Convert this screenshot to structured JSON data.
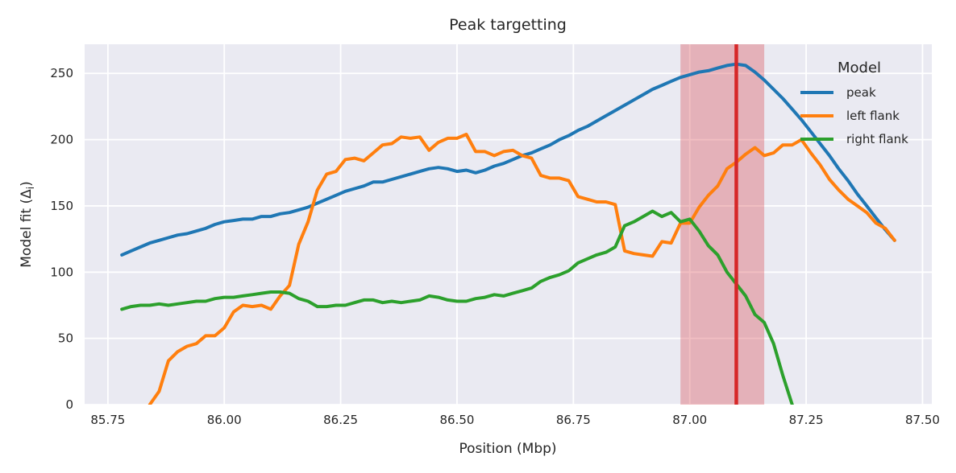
{
  "chart_data": {
    "type": "line",
    "title": "Peak targetting",
    "xlabel": "Position (Mbp)",
    "ylabel_main": "Model fit (Δ",
    "ylabel_sub": "i",
    "ylabel_close": ")",
    "xlim": [
      85.7,
      87.52
    ],
    "ylim": [
      0,
      272
    ],
    "xticks": [
      85.75,
      86.0,
      86.25,
      86.5,
      86.75,
      87.0,
      87.25,
      87.5
    ],
    "xtick_labels": [
      "85.75",
      "86.00",
      "86.25",
      "86.50",
      "86.75",
      "87.00",
      "87.25",
      "87.50"
    ],
    "yticks": [
      0,
      50,
      100,
      150,
      200,
      250
    ],
    "ytick_labels": [
      "0",
      "50",
      "100",
      "150",
      "200",
      "250"
    ],
    "grid": true,
    "legend_title": "Model",
    "legend_position": "top-right",
    "highlight_band": {
      "x0": 86.98,
      "x1": 87.16,
      "color": "#d9474f"
    },
    "highlight_line": {
      "x": 87.1,
      "color": "#d62728"
    },
    "series": [
      {
        "name": "peak",
        "color": "#1f77b4",
        "x": [
          85.78,
          85.8,
          85.82,
          85.84,
          85.86,
          85.88,
          85.9,
          85.92,
          85.94,
          85.96,
          85.98,
          86.0,
          86.02,
          86.04,
          86.06,
          86.08,
          86.1,
          86.12,
          86.14,
          86.16,
          86.18,
          86.2,
          86.22,
          86.24,
          86.26,
          86.28,
          86.3,
          86.32,
          86.34,
          86.36,
          86.38,
          86.4,
          86.42,
          86.44,
          86.46,
          86.48,
          86.5,
          86.52,
          86.54,
          86.56,
          86.58,
          86.6,
          86.62,
          86.64,
          86.66,
          86.68,
          86.7,
          86.72,
          86.74,
          86.76,
          86.78,
          86.8,
          86.82,
          86.84,
          86.86,
          86.88,
          86.9,
          86.92,
          86.94,
          86.96,
          86.98,
          87.0,
          87.02,
          87.04,
          87.06,
          87.08,
          87.1,
          87.12,
          87.14,
          87.16,
          87.18,
          87.2,
          87.22,
          87.24,
          87.26,
          87.28,
          87.3,
          87.32,
          87.34,
          87.36,
          87.38,
          87.4,
          87.42,
          87.44
        ],
        "values": [
          113,
          116,
          119,
          122,
          124,
          126,
          128,
          129,
          131,
          133,
          136,
          138,
          139,
          140,
          140,
          142,
          142,
          144,
          145,
          147,
          149,
          152,
          155,
          158,
          161,
          163,
          165,
          168,
          168,
          170,
          172,
          174,
          176,
          178,
          179,
          178,
          176,
          177,
          175,
          177,
          180,
          182,
          185,
          188,
          190,
          193,
          196,
          200,
          203,
          207,
          210,
          214,
          218,
          222,
          226,
          230,
          234,
          238,
          241,
          244,
          247,
          249,
          251,
          252,
          254,
          256,
          257,
          256,
          251,
          245,
          238,
          231,
          223,
          215,
          206,
          197,
          188,
          178,
          169,
          159,
          150,
          141,
          132,
          124
        ]
      },
      {
        "name": "left flank",
        "color": "#ff7f0e",
        "x": [
          85.84,
          85.86,
          85.88,
          85.9,
          85.92,
          85.94,
          85.96,
          85.98,
          86.0,
          86.02,
          86.04,
          86.06,
          86.08,
          86.1,
          86.12,
          86.14,
          86.16,
          86.18,
          86.2,
          86.22,
          86.24,
          86.26,
          86.28,
          86.3,
          86.32,
          86.34,
          86.36,
          86.38,
          86.4,
          86.42,
          86.44,
          86.46,
          86.48,
          86.5,
          86.52,
          86.54,
          86.56,
          86.58,
          86.6,
          86.62,
          86.64,
          86.66,
          86.68,
          86.7,
          86.72,
          86.74,
          86.76,
          86.78,
          86.8,
          86.82,
          86.84,
          86.86,
          86.88,
          86.9,
          86.92,
          86.94,
          86.96,
          86.98,
          87.0,
          87.02,
          87.04,
          87.06,
          87.08,
          87.1,
          87.12,
          87.14,
          87.16,
          87.18,
          87.2,
          87.22,
          87.24,
          87.26,
          87.28,
          87.3,
          87.32,
          87.34,
          87.36,
          87.38,
          87.4,
          87.42,
          87.44
        ],
        "values": [
          0,
          10,
          33,
          40,
          44,
          46,
          52,
          52,
          58,
          70,
          75,
          74,
          75,
          72,
          82,
          90,
          121,
          138,
          162,
          174,
          176,
          185,
          186,
          184,
          190,
          196,
          197,
          202,
          201,
          202,
          192,
          198,
          201,
          201,
          204,
          191,
          191,
          188,
          191,
          192,
          188,
          186,
          173,
          171,
          171,
          169,
          157,
          155,
          153,
          153,
          151,
          116,
          114,
          113,
          112,
          123,
          122,
          137,
          137,
          149,
          158,
          165,
          178,
          183,
          189,
          194,
          188,
          190,
          196,
          196,
          200,
          190,
          181,
          170,
          162,
          155,
          150,
          145,
          137,
          133,
          124
        ]
      },
      {
        "name": "right flank",
        "color": "#2ca02c",
        "x": [
          85.78,
          85.8,
          85.82,
          85.84,
          85.86,
          85.88,
          85.9,
          85.92,
          85.94,
          85.96,
          85.98,
          86.0,
          86.02,
          86.04,
          86.06,
          86.08,
          86.1,
          86.12,
          86.14,
          86.16,
          86.18,
          86.2,
          86.22,
          86.24,
          86.26,
          86.28,
          86.3,
          86.32,
          86.34,
          86.36,
          86.38,
          86.4,
          86.42,
          86.44,
          86.46,
          86.48,
          86.5,
          86.52,
          86.54,
          86.56,
          86.58,
          86.6,
          86.62,
          86.64,
          86.66,
          86.68,
          86.7,
          86.72,
          86.74,
          86.76,
          86.78,
          86.8,
          86.82,
          86.84,
          86.86,
          86.88,
          86.9,
          86.92,
          86.94,
          86.96,
          86.98,
          87.0,
          87.02,
          87.04,
          87.06,
          87.08,
          87.1,
          87.12,
          87.14,
          87.16,
          87.18,
          87.2,
          87.22
        ],
        "values": [
          72,
          74,
          75,
          75,
          76,
          75,
          76,
          77,
          78,
          78,
          80,
          81,
          81,
          82,
          83,
          84,
          85,
          85,
          84,
          80,
          78,
          74,
          74,
          75,
          75,
          77,
          79,
          79,
          77,
          78,
          77,
          78,
          79,
          82,
          81,
          79,
          78,
          78,
          80,
          81,
          83,
          82,
          84,
          86,
          88,
          93,
          96,
          98,
          101,
          107,
          110,
          113,
          115,
          119,
          135,
          138,
          142,
          146,
          142,
          145,
          138,
          140,
          131,
          120,
          113,
          100,
          91,
          82,
          68,
          62,
          46,
          22,
          0
        ]
      }
    ]
  }
}
